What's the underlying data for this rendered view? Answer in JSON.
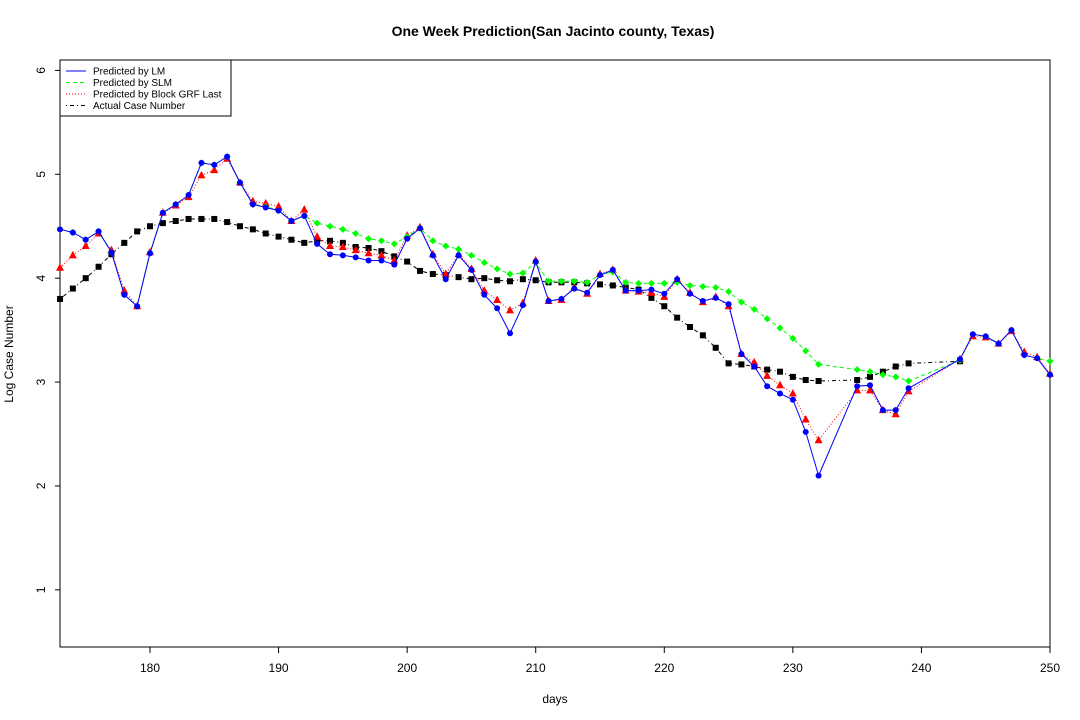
{
  "chart_data": {
    "type": "line",
    "title": "One Week Prediction(San Jacinto county, Texas)",
    "xlabel": "days",
    "ylabel": "Log Case Number",
    "xlim": [
      173,
      250
    ],
    "ylim": [
      0.45,
      6.1
    ],
    "xticks": [
      180,
      190,
      200,
      210,
      220,
      230,
      240,
      250
    ],
    "yticks": [
      1,
      2,
      3,
      4,
      5,
      6
    ],
    "grid": false,
    "legend_position": "top-left",
    "series": [
      {
        "name": "Predicted by LM",
        "color": "#0000ff",
        "line_style": "solid",
        "marker": "circle",
        "x": [
          173,
          174,
          175,
          176,
          177,
          178,
          179,
          180,
          181,
          182,
          183,
          184,
          185,
          186,
          187,
          188,
          189,
          190,
          191,
          192,
          193,
          194,
          195,
          196,
          197,
          198,
          199,
          200,
          201,
          202,
          203,
          204,
          205,
          206,
          207,
          208,
          209,
          210,
          211,
          212,
          213,
          214,
          215,
          216,
          217,
          218,
          219,
          220,
          221,
          222,
          223,
          224,
          225,
          226,
          227,
          228,
          229,
          230,
          231,
          232,
          235,
          236,
          237,
          238,
          239,
          243,
          244,
          245,
          246,
          247,
          248,
          249,
          250
        ],
        "y": [
          4.47,
          4.44,
          4.37,
          4.45,
          4.25,
          3.84,
          3.73,
          4.24,
          4.63,
          4.71,
          4.8,
          5.11,
          5.09,
          5.17,
          4.92,
          4.71,
          4.68,
          4.65,
          4.55,
          4.6,
          4.33,
          4.23,
          4.22,
          4.2,
          4.17,
          4.17,
          4.13,
          4.38,
          4.48,
          4.22,
          3.99,
          4.22,
          4.08,
          3.84,
          3.71,
          3.47,
          3.74,
          4.16,
          3.78,
          3.8,
          3.9,
          3.86,
          4.03,
          4.08,
          3.88,
          3.88,
          3.89,
          3.85,
          3.99,
          3.85,
          3.78,
          3.81,
          3.75,
          3.27,
          3.15,
          2.96,
          2.89,
          2.83,
          2.52,
          2.1,
          2.96,
          2.97,
          2.73,
          2.73,
          2.94,
          3.22,
          3.46,
          3.44,
          3.37,
          3.5,
          3.26,
          3.23,
          3.07
        ]
      },
      {
        "name": "Predicted by SLM",
        "color": "#00ff00",
        "line_style": "dashed",
        "marker": "diamond",
        "x": [
          173,
          174,
          175,
          176,
          177,
          178,
          179,
          180,
          181,
          182,
          183,
          184,
          185,
          186,
          187,
          188,
          189,
          190,
          191,
          192,
          193,
          194,
          195,
          196,
          197,
          198,
          199,
          200,
          201,
          202,
          203,
          204,
          205,
          206,
          207,
          208,
          209,
          210,
          211,
          212,
          213,
          214,
          215,
          216,
          217,
          218,
          219,
          220,
          221,
          222,
          223,
          224,
          225,
          226,
          227,
          228,
          229,
          230,
          231,
          232,
          235,
          236,
          237,
          238,
          239,
          243,
          244,
          245,
          246,
          247,
          248,
          249,
          250
        ],
        "y": [
          4.47,
          4.44,
          4.37,
          4.45,
          4.25,
          3.84,
          3.73,
          4.24,
          4.63,
          4.71,
          4.8,
          5.11,
          5.09,
          5.17,
          4.92,
          4.71,
          4.69,
          4.65,
          4.55,
          4.6,
          4.53,
          4.5,
          4.47,
          4.43,
          4.38,
          4.36,
          4.33,
          4.4,
          4.48,
          4.36,
          4.31,
          4.28,
          4.22,
          4.15,
          4.09,
          4.04,
          4.05,
          4.15,
          3.97,
          3.97,
          3.97,
          3.96,
          4.03,
          4.06,
          3.96,
          3.95,
          3.95,
          3.95,
          3.96,
          3.93,
          3.92,
          3.91,
          3.87,
          3.77,
          3.7,
          3.61,
          3.52,
          3.42,
          3.3,
          3.17,
          3.12,
          3.1,
          3.07,
          3.05,
          3.01,
          3.21,
          3.46,
          3.44,
          3.37,
          3.5,
          3.26,
          3.23,
          3.2
        ]
      },
      {
        "name": "Predicted by Block GRF Last",
        "color": "#ff0000",
        "line_style": "dotted",
        "marker": "triangle",
        "x": [
          173,
          174,
          175,
          176,
          177,
          178,
          179,
          180,
          181,
          182,
          183,
          184,
          185,
          186,
          187,
          188,
          189,
          190,
          191,
          192,
          193,
          194,
          195,
          196,
          197,
          198,
          199,
          200,
          201,
          202,
          203,
          204,
          205,
          206,
          207,
          208,
          209,
          210,
          211,
          212,
          213,
          214,
          215,
          216,
          217,
          218,
          219,
          220,
          221,
          222,
          223,
          224,
          225,
          226,
          227,
          228,
          229,
          230,
          231,
          232,
          235,
          236,
          237,
          238,
          239,
          243,
          244,
          245,
          246,
          247,
          248,
          249,
          250
        ],
        "y": [
          4.1,
          4.22,
          4.31,
          4.43,
          4.27,
          3.88,
          3.73,
          4.25,
          4.63,
          4.7,
          4.78,
          4.99,
          5.04,
          5.15,
          4.92,
          4.74,
          4.72,
          4.69,
          4.55,
          4.66,
          4.4,
          4.31,
          4.3,
          4.27,
          4.24,
          4.22,
          4.17,
          4.41,
          4.49,
          4.23,
          4.04,
          4.23,
          4.09,
          3.88,
          3.79,
          3.69,
          3.76,
          4.17,
          3.78,
          3.79,
          3.91,
          3.85,
          4.04,
          4.08,
          3.88,
          3.87,
          3.86,
          3.82,
          3.99,
          3.86,
          3.77,
          3.82,
          3.73,
          3.27,
          3.19,
          3.06,
          2.97,
          2.89,
          2.64,
          2.44,
          2.92,
          2.92,
          2.73,
          2.69,
          2.91,
          3.22,
          3.44,
          3.43,
          3.37,
          3.49,
          3.29,
          3.24,
          3.08
        ]
      },
      {
        "name": "Actual Case Number",
        "color": "#000000",
        "line_style": "dotdash",
        "marker": "square",
        "x": [
          173,
          174,
          175,
          176,
          177,
          178,
          179,
          180,
          181,
          182,
          183,
          184,
          185,
          186,
          187,
          188,
          189,
          190,
          191,
          192,
          193,
          194,
          195,
          196,
          197,
          198,
          199,
          200,
          201,
          202,
          203,
          204,
          205,
          206,
          207,
          208,
          209,
          210,
          211,
          212,
          213,
          214,
          215,
          216,
          217,
          218,
          219,
          220,
          221,
          222,
          223,
          224,
          225,
          226,
          227,
          228,
          229,
          230,
          231,
          232,
          235,
          236,
          237,
          238,
          239,
          243
        ],
        "y": [
          3.8,
          3.9,
          4.0,
          4.11,
          4.23,
          4.34,
          4.45,
          4.5,
          4.53,
          4.55,
          4.57,
          4.57,
          4.57,
          4.54,
          4.5,
          4.47,
          4.43,
          4.4,
          4.37,
          4.34,
          4.36,
          4.36,
          4.34,
          4.3,
          4.29,
          4.26,
          4.21,
          4.16,
          4.07,
          4.04,
          4.03,
          4.01,
          3.99,
          4.0,
          3.98,
          3.97,
          3.99,
          3.98,
          3.96,
          3.96,
          3.96,
          3.95,
          3.94,
          3.93,
          3.91,
          3.89,
          3.81,
          3.73,
          3.62,
          3.53,
          3.45,
          3.33,
          3.18,
          3.17,
          3.15,
          3.12,
          3.1,
          3.05,
          3.02,
          3.01,
          3.02,
          3.05,
          3.1,
          3.15,
          3.18,
          3.2
        ]
      }
    ]
  }
}
